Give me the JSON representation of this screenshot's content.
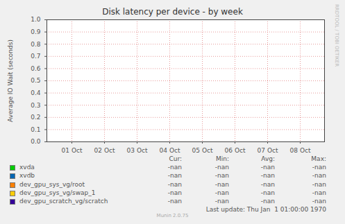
{
  "chart_data": {
    "type": "line",
    "title": "Disk latency per device - by week",
    "y_label": "Average IO Wait (seconds)",
    "x": [
      "01 Oct",
      "02 Oct",
      "03 Oct",
      "04 Oct",
      "05 Oct",
      "06 Oct",
      "07 Oct",
      "08 Oct"
    ],
    "series": [
      {
        "name": "xvda",
        "color": "#00CC00",
        "values": [
          null,
          null,
          null,
          null,
          null,
          null,
          null,
          null
        ],
        "stats": [
          "-nan",
          "-nan",
          "-nan",
          "-nan"
        ]
      },
      {
        "name": "xvdb",
        "color": "#0066B3",
        "values": [
          null,
          null,
          null,
          null,
          null,
          null,
          null,
          null
        ],
        "stats": [
          "-nan",
          "-nan",
          "-nan",
          "-nan"
        ]
      },
      {
        "name": "dev_gpu_sys_vg/root",
        "color": "#FF8000",
        "values": [
          null,
          null,
          null,
          null,
          null,
          null,
          null,
          null
        ],
        "stats": [
          "-nan",
          "-nan",
          "-nan",
          "-nan"
        ]
      },
      {
        "name": "dev_gpu_sys_vg/swap_1",
        "color": "#FFCC00",
        "values": [
          null,
          null,
          null,
          null,
          null,
          null,
          null,
          null
        ],
        "stats": [
          "-nan",
          "-nan",
          "-nan",
          "-nan"
        ]
      },
      {
        "name": "dev_gpu_scratch_vg/scratch",
        "color": "#330099",
        "values": [
          null,
          null,
          null,
          null,
          null,
          null,
          null,
          null
        ],
        "stats": [
          "-nan",
          "-nan",
          "-nan",
          "-nan"
        ]
      }
    ],
    "stat_columns": [
      "Cur:",
      "Min:",
      "Avg:",
      "Max:"
    ],
    "ylim": [
      0,
      1
    ],
    "yticks": [
      {
        "value": 0,
        "label": "0.0"
      },
      0.1,
      0.2,
      0.3,
      0.4,
      0.5,
      0.6,
      0.7,
      0.8,
      0.9,
      {
        "value": 1,
        "label": "1.0"
      }
    ],
    "grid": true,
    "footer": "Last update: Thu Jan  1 01:00:00 1970",
    "credit": "Munin 2.0.75",
    "side_text": "RRDTOOL / TOBI OETIKER"
  }
}
